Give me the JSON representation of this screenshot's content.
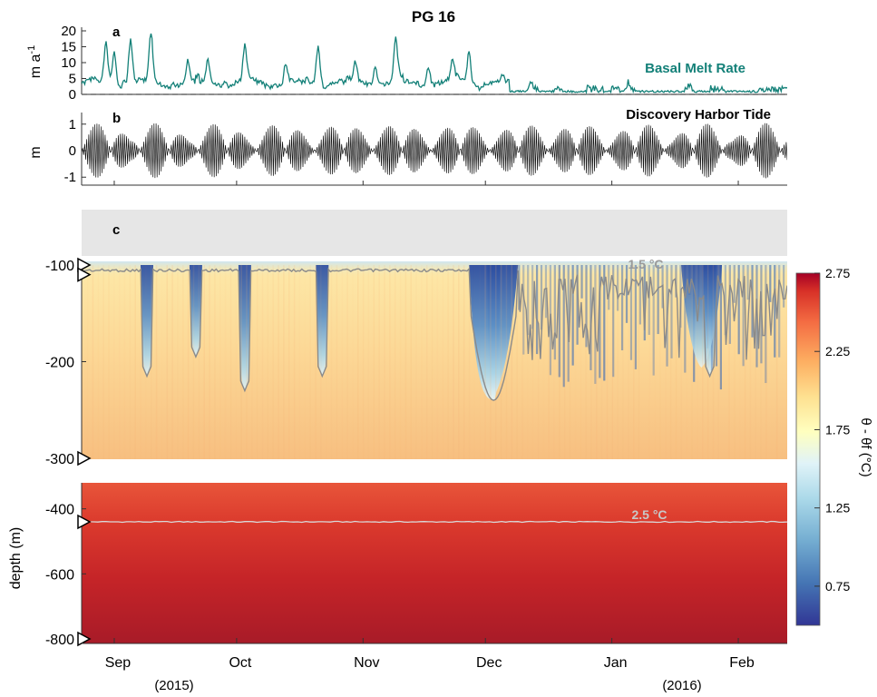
{
  "figure": {
    "title": "PG 16",
    "panel_labels": [
      "a",
      "b",
      "c"
    ],
    "year_labels": [
      "(2015)",
      "(2016)"
    ]
  },
  "chart_data": [
    {
      "type": "line",
      "panel": "a",
      "series_label": "Basal Melt Rate",
      "ylabel": "m a⁻¹",
      "ylim": [
        0,
        20
      ],
      "yticks": [
        0,
        5,
        10,
        15,
        20
      ],
      "color": "#138078",
      "reference_line": {
        "y": 0,
        "style": "dashed"
      },
      "x_range": [
        "2015-08-24",
        "2016-02-13"
      ],
      "peaks": [
        {
          "date": "2015-08-30",
          "value": 14
        },
        {
          "date": "2015-09-01",
          "value": 12
        },
        {
          "date": "2015-09-05",
          "value": 16
        },
        {
          "date": "2015-09-10",
          "value": 17
        },
        {
          "date": "2015-09-19",
          "value": 8
        },
        {
          "date": "2015-09-24",
          "value": 9
        },
        {
          "date": "2015-10-03",
          "value": 13
        },
        {
          "date": "2015-10-13",
          "value": 8
        },
        {
          "date": "2015-10-21",
          "value": 14
        },
        {
          "date": "2015-10-30",
          "value": 7
        },
        {
          "date": "2015-11-04",
          "value": 8
        },
        {
          "date": "2015-11-09",
          "value": 15
        },
        {
          "date": "2015-11-17",
          "value": 8
        },
        {
          "date": "2015-11-23",
          "value": 9
        },
        {
          "date": "2015-11-27",
          "value": 12
        },
        {
          "date": "2015-12-12",
          "value": 4
        },
        {
          "date": "2016-01-05",
          "value": 4
        },
        {
          "date": "2016-01-20",
          "value": 3
        },
        {
          "date": "2016-02-05",
          "value": 2
        }
      ]
    },
    {
      "type": "line",
      "panel": "b",
      "series_label": "Discovery Harbor Tide",
      "ylabel": "m",
      "ylim": [
        -1.3,
        1.3
      ],
      "yticks": [
        -1,
        0,
        1
      ],
      "color": "#111111",
      "spring_tides": [
        "2015-08-29",
        "2015-09-12",
        "2015-09-27",
        "2015-10-12",
        "2015-10-27",
        "2015-11-10",
        "2015-11-25",
        "2015-12-10",
        "2015-12-24",
        "2016-01-08",
        "2016-01-23",
        "2016-02-07"
      ]
    },
    {
      "type": "heatmap",
      "panel": "c",
      "variable": "θ - θf (°C)",
      "colormap": "RdYlBu_r",
      "clim": [
        0.5,
        2.75
      ],
      "colorbar_ticks": [
        0.75,
        1.25,
        1.75,
        2.25,
        2.75
      ],
      "colorbar_label": "θ - θf (°C)",
      "ylabel": "depth (m)",
      "upper_depth_range": [
        -100,
        -300
      ],
      "upper_yticks": [
        -100,
        -200,
        -300
      ],
      "lower_depth_range": [
        -320,
        -800
      ],
      "lower_yticks": [
        -400,
        -600,
        -800
      ],
      "xticks": [
        "Sep",
        "Oct",
        "Nov",
        "Dec",
        "Jan",
        "Feb"
      ],
      "contours": [
        {
          "label": "1.5 °C",
          "panel": "upper"
        },
        {
          "label": "2.5 °C",
          "panel": "lower",
          "depth": -440
        }
      ],
      "instrument_depths": [
        -100,
        -110,
        -300,
        -440,
        -800
      ],
      "cold_intrusions": [
        {
          "date": "2015-09-09",
          "max_depth": -215
        },
        {
          "date": "2015-09-21",
          "max_depth": -195
        },
        {
          "date": "2015-10-03",
          "max_depth": -230
        },
        {
          "date": "2015-10-22",
          "max_depth": -215
        },
        {
          "date": "2015-12-03",
          "max_depth": -240
        },
        {
          "date": "2016-01-25",
          "max_depth": -215
        }
      ]
    }
  ]
}
